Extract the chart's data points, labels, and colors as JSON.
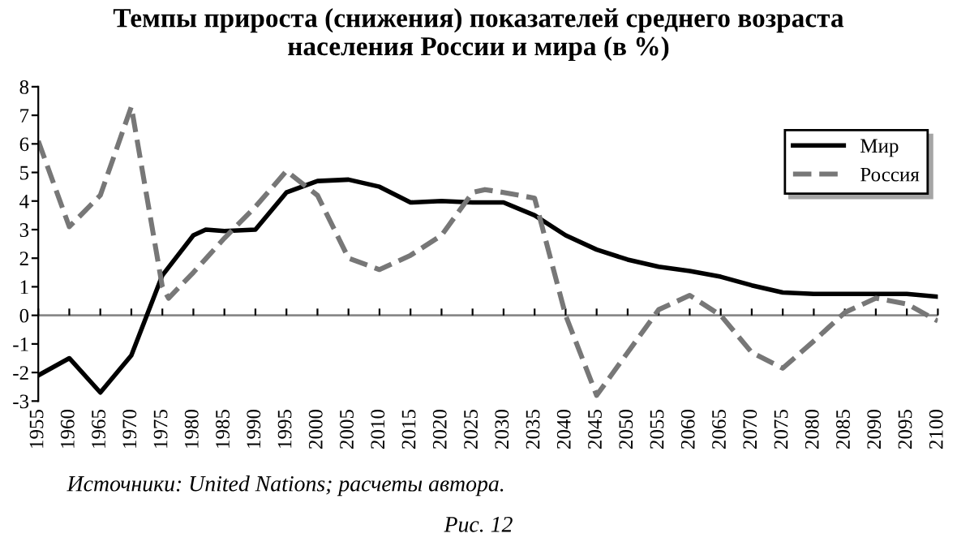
{
  "chart_data": {
    "type": "line",
    "title": "Темпы прироста (снижения) показателей среднего возраста\nнаселения России и мира (в %)",
    "x": [
      1955,
      1960,
      1965,
      1970,
      1975,
      1980,
      1982,
      1985,
      1990,
      1995,
      2000,
      2005,
      2010,
      2015,
      2020,
      2025,
      2030,
      2035,
      2040,
      2045,
      2050,
      2055,
      2060,
      2065,
      2070,
      2075,
      2080,
      2085,
      2090,
      2095,
      2100
    ],
    "series": [
      {
        "name": "Мир",
        "color": "#000000",
        "line_style": "solid",
        "values": [
          -2.1,
          -1.5,
          -2.7,
          -1.4,
          1.4,
          2.8,
          3.0,
          2.95,
          3.0,
          4.3,
          4.7,
          4.75,
          4.5,
          3.95,
          4.0,
          3.95,
          3.95,
          3.5,
          2.8,
          2.3,
          1.95,
          1.7,
          1.55,
          1.35,
          1.05,
          0.8,
          0.75,
          0.75,
          0.75,
          0.75,
          0.65
        ]
      },
      {
        "name": "Россия",
        "color": "#777777",
        "line_style": "dashed",
        "x": [
          1955,
          1960,
          1965,
          1970,
          1975,
          1976,
          1980,
          1985,
          1990,
          1995,
          2000,
          2005,
          2010,
          2015,
          2020,
          2025,
          2027,
          2030,
          2035,
          2040,
          2045,
          2050,
          2055,
          2060,
          2065,
          2070,
          2075,
          2080,
          2085,
          2090,
          2095,
          2100
        ],
        "values": [
          6.1,
          3.1,
          4.2,
          7.3,
          1.0,
          0.6,
          1.5,
          2.7,
          3.8,
          5.05,
          4.2,
          2.0,
          1.6,
          2.1,
          2.8,
          4.3,
          4.4,
          4.3,
          4.1,
          0.0,
          -2.8,
          -1.3,
          0.2,
          0.7,
          0.0,
          -1.3,
          -1.85,
          -0.9,
          0.1,
          0.6,
          0.4,
          -0.2
        ]
      }
    ],
    "xlim": [
      1955,
      2100
    ],
    "xticks": [
      1955,
      1960,
      1965,
      1970,
      1975,
      1980,
      1985,
      1990,
      1995,
      2000,
      2005,
      2010,
      2015,
      2020,
      2025,
      2030,
      2035,
      2040,
      2045,
      2050,
      2055,
      2060,
      2065,
      2070,
      2075,
      2080,
      2085,
      2090,
      2095,
      2100
    ],
    "ylim": [
      -3,
      8
    ],
    "yticks": [
      -3,
      -2,
      -1,
      0,
      1,
      2,
      3,
      4,
      5,
      6,
      7,
      8
    ],
    "ref_lines": [
      {
        "axis": "y",
        "value": 0,
        "color": "#888888"
      }
    ],
    "legend": "top right",
    "annotations": [
      "Источники: United Nations; расчеты автора.",
      "Рис. 12"
    ]
  }
}
